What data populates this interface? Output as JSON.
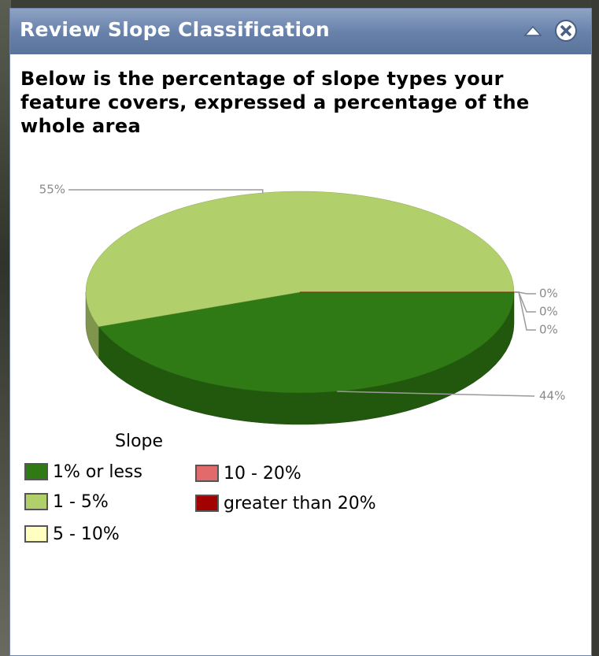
{
  "window": {
    "title": "Review Slope Classification"
  },
  "heading": "Below is the percentage of slope types your feature covers, expressed a percentage of the whole area",
  "chart_data": {
    "type": "pie",
    "categories": [
      "1% or less",
      "1 - 5%",
      "5 - 10%",
      "10 - 20%",
      "greater than 20%"
    ],
    "values": [
      44,
      55,
      0,
      0,
      0
    ],
    "value_labels": [
      "44%",
      "55%",
      "0%",
      "0%",
      "0%"
    ],
    "colors": [
      "#2f7a14",
      "#b1cf6b",
      "#ffffc2",
      "#e26a6a",
      "#a30000"
    ],
    "legend_title": "Slope"
  }
}
